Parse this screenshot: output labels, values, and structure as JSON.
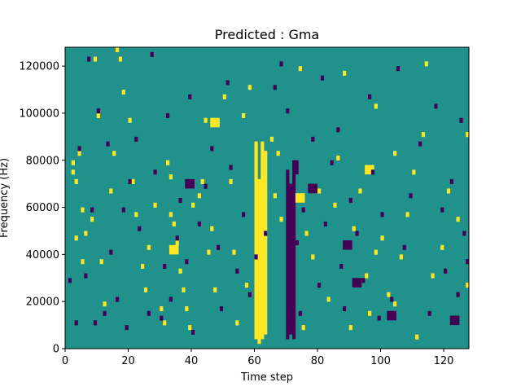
{
  "chart_data": {
    "type": "heatmap",
    "title": "Predicted : Gma",
    "xlabel": "Time step",
    "ylabel": "Frequency (Hz)",
    "xlim": [
      0,
      128
    ],
    "ylim": [
      0,
      128000
    ],
    "x_ticks": [
      0,
      20,
      40,
      60,
      80,
      100,
      120
    ],
    "y_ticks": [
      0,
      20000,
      40000,
      60000,
      80000,
      100000,
      120000
    ],
    "x_tick_labels": [
      "0",
      "20",
      "40",
      "60",
      "80",
      "100",
      "120"
    ],
    "y_tick_labels": [
      "0",
      "20000",
      "40000",
      "60000",
      "80000",
      "100000",
      "120000"
    ],
    "colormap": "viridis",
    "colors": {
      "background": "#21918c",
      "high": "#fde725",
      "low": "#440154"
    },
    "grid": false,
    "values": "binary mask: background 0.5, high 1, low 0",
    "high_columns": [
      {
        "x": 60,
        "y_ranges": [
          [
            4000,
            88000
          ]
        ]
      },
      {
        "x": 61,
        "y_ranges": [
          [
            2000,
            72000
          ]
        ]
      },
      {
        "x": 62,
        "y_ranges": [
          [
            4000,
            88000
          ]
        ]
      },
      {
        "x": 63,
        "y_ranges": [
          [
            6000,
            84000
          ]
        ]
      }
    ],
    "low_columns": [
      {
        "x": 70,
        "y_ranges": [
          [
            4000,
            76000
          ]
        ]
      },
      {
        "x": 71,
        "y_ranges": [
          [
            6000,
            70000
          ]
        ]
      },
      {
        "x": 72,
        "y_ranges": [
          [
            4000,
            76000
          ]
        ]
      }
    ],
    "high_cells": [
      [
        2,
        78000
      ],
      [
        2,
        74000
      ],
      [
        3,
        70000
      ],
      [
        3,
        46000
      ],
      [
        4,
        82000
      ],
      [
        5,
        58000
      ],
      [
        6,
        48000
      ],
      [
        8,
        54000
      ],
      [
        9,
        122000
      ],
      [
        10,
        98000
      ],
      [
        11,
        36000
      ],
      [
        12,
        18000
      ],
      [
        14,
        66000
      ],
      [
        16,
        126000
      ],
      [
        17,
        122000
      ],
      [
        18,
        108000
      ],
      [
        20,
        96000
      ],
      [
        21,
        70000
      ],
      [
        22,
        56000
      ],
      [
        24,
        34000
      ],
      [
        25,
        24000
      ],
      [
        28,
        60000
      ],
      [
        30,
        16000
      ],
      [
        31,
        10000
      ],
      [
        32,
        78000
      ],
      [
        33,
        72000
      ],
      [
        33,
        56000
      ],
      [
        34,
        52000
      ],
      [
        35,
        44000
      ],
      [
        36,
        32000
      ],
      [
        37,
        24000
      ],
      [
        38,
        16000
      ],
      [
        39,
        8000
      ],
      [
        40,
        60000
      ],
      [
        42,
        64000
      ],
      [
        44,
        96000
      ],
      [
        46,
        50000
      ],
      [
        47,
        24000
      ],
      [
        50,
        106000
      ],
      [
        52,
        70000
      ],
      [
        53,
        40000
      ],
      [
        54,
        10000
      ],
      [
        56,
        98000
      ],
      [
        57,
        26000
      ],
      [
        58,
        110000
      ],
      [
        65,
        88000
      ],
      [
        67,
        82000
      ],
      [
        66,
        64000
      ],
      [
        68,
        54000
      ],
      [
        74,
        118000
      ],
      [
        76,
        48000
      ],
      [
        78,
        38000
      ],
      [
        80,
        66000
      ],
      [
        83,
        20000
      ],
      [
        86,
        80000
      ],
      [
        88,
        116000
      ],
      [
        90,
        8000
      ],
      [
        91,
        50000
      ],
      [
        93,
        66000
      ],
      [
        95,
        30000
      ],
      [
        96,
        14000
      ],
      [
        98,
        102000
      ],
      [
        100,
        46000
      ],
      [
        102,
        22000
      ],
      [
        104,
        82000
      ],
      [
        106,
        38000
      ],
      [
        108,
        56000
      ],
      [
        110,
        74000
      ],
      [
        111,
        4000
      ],
      [
        113,
        90000
      ],
      [
        116,
        30000
      ],
      [
        119,
        42000
      ],
      [
        121,
        66000
      ],
      [
        124,
        54000
      ],
      [
        127,
        90000
      ],
      [
        127,
        26000
      ],
      [
        5,
        36000
      ],
      [
        15,
        82000
      ],
      [
        26,
        42000
      ],
      [
        43,
        70000
      ],
      [
        45,
        40000
      ],
      [
        75,
        8000
      ],
      [
        85,
        60000
      ],
      [
        98,
        40000
      ],
      [
        104,
        18000
      ],
      [
        114,
        120000
      ]
    ],
    "low_cells": [
      [
        1,
        28000
      ],
      [
        3,
        10000
      ],
      [
        4,
        84000
      ],
      [
        6,
        30000
      ],
      [
        7,
        122000
      ],
      [
        8,
        58000
      ],
      [
        10,
        100000
      ],
      [
        12,
        14000
      ],
      [
        13,
        86000
      ],
      [
        14,
        40000
      ],
      [
        16,
        20000
      ],
      [
        18,
        58000
      ],
      [
        19,
        8000
      ],
      [
        20,
        70000
      ],
      [
        22,
        88000
      ],
      [
        23,
        50000
      ],
      [
        26,
        14000
      ],
      [
        28,
        74000
      ],
      [
        30,
        12000
      ],
      [
        31,
        34000
      ],
      [
        32,
        98000
      ],
      [
        33,
        20000
      ],
      [
        35,
        46000
      ],
      [
        36,
        62000
      ],
      [
        38,
        36000
      ],
      [
        39,
        106000
      ],
      [
        40,
        6000
      ],
      [
        42,
        52000
      ],
      [
        44,
        68000
      ],
      [
        46,
        84000
      ],
      [
        48,
        42000
      ],
      [
        49,
        16000
      ],
      [
        51,
        112000
      ],
      [
        52,
        76000
      ],
      [
        54,
        32000
      ],
      [
        56,
        56000
      ],
      [
        58,
        22000
      ],
      [
        66,
        110000
      ],
      [
        68,
        120000
      ],
      [
        70,
        100000
      ],
      [
        73,
        44000
      ],
      [
        74,
        14000
      ],
      [
        75,
        58000
      ],
      [
        77,
        68000
      ],
      [
        78,
        88000
      ],
      [
        80,
        26000
      ],
      [
        81,
        114000
      ],
      [
        82,
        52000
      ],
      [
        84,
        78000
      ],
      [
        86,
        92000
      ],
      [
        87,
        34000
      ],
      [
        88,
        16000
      ],
      [
        90,
        62000
      ],
      [
        92,
        48000
      ],
      [
        94,
        28000
      ],
      [
        96,
        106000
      ],
      [
        97,
        74000
      ],
      [
        99,
        12000
      ],
      [
        100,
        56000
      ],
      [
        103,
        20000
      ],
      [
        105,
        118000
      ],
      [
        107,
        42000
      ],
      [
        109,
        64000
      ],
      [
        112,
        86000
      ],
      [
        115,
        14000
      ],
      [
        117,
        102000
      ],
      [
        119,
        58000
      ],
      [
        120,
        32000
      ],
      [
        122,
        70000
      ],
      [
        124,
        22000
      ],
      [
        125,
        96000
      ],
      [
        126,
        48000
      ],
      [
        127,
        36000
      ],
      [
        9,
        10000
      ],
      [
        27,
        124000
      ],
      [
        60,
        38000
      ],
      [
        63,
        48000
      ]
    ],
    "low_blocks": [
      {
        "x0": 72,
        "x1": 74,
        "y0": 74000,
        "y1": 80000
      },
      {
        "x0": 77,
        "x1": 80,
        "y0": 66000,
        "y1": 70000
      },
      {
        "x0": 88,
        "x1": 91,
        "y0": 42000,
        "y1": 46000
      },
      {
        "x0": 91,
        "x1": 94,
        "y0": 26000,
        "y1": 30000
      },
      {
        "x0": 102,
        "x1": 105,
        "y0": 12000,
        "y1": 16000
      },
      {
        "x0": 122,
        "x1": 125,
        "y0": 10000,
        "y1": 14000
      },
      {
        "x0": 38,
        "x1": 41,
        "y0": 68000,
        "y1": 72000
      }
    ],
    "high_blocks": [
      {
        "x0": 73,
        "x1": 76,
        "y0": 62000,
        "y1": 66000
      },
      {
        "x0": 95,
        "x1": 98,
        "y0": 74000,
        "y1": 78000
      },
      {
        "x0": 33,
        "x1": 36,
        "y0": 40000,
        "y1": 44000
      },
      {
        "x0": 46,
        "x1": 49,
        "y0": 94000,
        "y1": 98000
      }
    ]
  }
}
